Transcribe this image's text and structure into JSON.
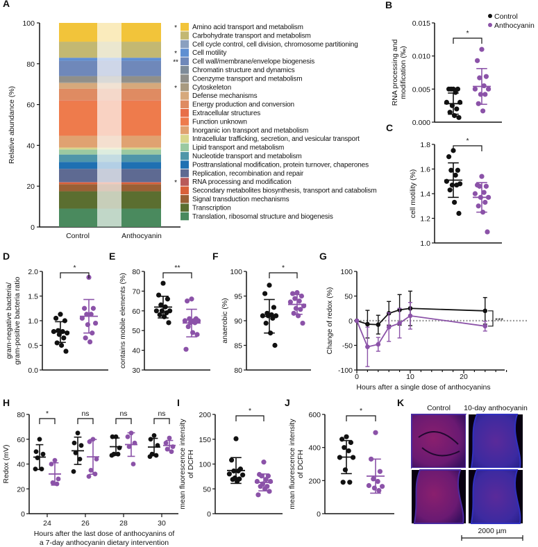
{
  "colors": {
    "control": "#111111",
    "anthocyanin": "#8b52a8",
    "reference_line": "#9a9a9a"
  },
  "legend": [
    {
      "label": "Control",
      "color": "#111111"
    },
    {
      "label": "Anthocyanin",
      "color": "#8b52a8"
    }
  ],
  "panel_letters": [
    "A",
    "B",
    "C",
    "D",
    "E",
    "F",
    "G",
    "H",
    "I",
    "J",
    "K"
  ],
  "chart_data": [
    {
      "id": "A",
      "type": "bar",
      "stacked": true,
      "categories": [
        "Control",
        "Anthocyanin"
      ],
      "ylabel": "Relative abundance (%)",
      "ylim": [
        0,
        100
      ],
      "ytick_labels": [
        "0",
        "20",
        "40",
        "60",
        "80",
        "100"
      ],
      "series": [
        {
          "name": "Amino acid transport and metabolism",
          "color": "#f2c43a",
          "values": [
            9.2,
            9.2
          ],
          "sig": "*"
        },
        {
          "name": "Carbohydrate transport and metabolism",
          "color": "#c3b872",
          "values": [
            7.8,
            7.8
          ],
          "sig": ""
        },
        {
          "name": "Cell cycle control, cell division, chromosome partitioning",
          "color": "#8aa0c0",
          "values": [
            0.2,
            0.2
          ],
          "sig": ""
        },
        {
          "name": "Cell motility",
          "color": "#5f8fd2",
          "values": [
            1.3,
            1.3
          ],
          "sig": "*"
        },
        {
          "name": "Cell wall/membrane/envelope biogenesis",
          "color": "#6f88ba",
          "values": [
            7.5,
            7.5
          ],
          "sig": "**"
        },
        {
          "name": "Chromatin structure and dynamics",
          "color": "#7f8c99",
          "values": [
            0.1,
            0.1
          ],
          "sig": ""
        },
        {
          "name": "Coenzyme transport and metabolism",
          "color": "#908f8a",
          "values": [
            3.1,
            3.1
          ],
          "sig": ""
        },
        {
          "name": "Cytoskeleton",
          "color": "#a89a80",
          "values": [
            0.3,
            0.3
          ],
          "sig": "*"
        },
        {
          "name": "Defense mechanisms",
          "color": "#d6a97c",
          "values": [
            2.7,
            2.7
          ],
          "sig": ""
        },
        {
          "name": "Energy production and conversion",
          "color": "#df8b62",
          "values": [
            5.8,
            5.8
          ],
          "sig": ""
        },
        {
          "name": "Extracellular structures",
          "color": "#e86e48",
          "values": [
            0.4,
            0.4
          ],
          "sig": ""
        },
        {
          "name": "Function unknown",
          "color": "#ee7b4c",
          "values": [
            16.9,
            16.9
          ],
          "sig": ""
        },
        {
          "name": "Inorganic ion transport and metabolism",
          "color": "#e0a271",
          "values": [
            5.8,
            5.8
          ],
          "sig": ""
        },
        {
          "name": "Intracellular trafficking, secretion, and vesicular transport",
          "color": "#d9d68c",
          "values": [
            0.9,
            0.9
          ],
          "sig": ""
        },
        {
          "name": "Lipid transport and metabolism",
          "color": "#9bc9a1",
          "values": [
            2.5,
            2.5
          ],
          "sig": ""
        },
        {
          "name": "Nucleotide transport and metabolism",
          "color": "#4f96a9",
          "values": [
            3.6,
            3.6
          ],
          "sig": ""
        },
        {
          "name": "Posttranslational modification, protein turnover, chaperones",
          "color": "#1f70b2",
          "values": [
            3.4,
            3.4
          ],
          "sig": ""
        },
        {
          "name": "Replication, recombination and repair",
          "color": "#5e6a92",
          "values": [
            6.5,
            6.5
          ],
          "sig": ""
        },
        {
          "name": "RNA processing and modification",
          "color": "#b95a5a",
          "values": [
            0.2,
            0.2
          ],
          "sig": "*"
        },
        {
          "name": "Secondary metabolites biosynthesis, transport and catabolism",
          "color": "#d9603a",
          "values": [
            0.8,
            0.8
          ],
          "sig": ""
        },
        {
          "name": "Signal transduction mechanisms",
          "color": "#9a6035",
          "values": [
            3.5,
            3.5
          ],
          "sig": ""
        },
        {
          "name": "Transcription",
          "color": "#5b6e30",
          "values": [
            8.5,
            8.5
          ],
          "sig": ""
        },
        {
          "name": "Translation, ribosomal structure and biogenesis",
          "color": "#4a8a5e",
          "values": [
            9.0,
            9.0
          ],
          "sig": ""
        }
      ]
    },
    {
      "id": "B",
      "type": "scatter",
      "ylabel": [
        "RNA processing and",
        "modification (‰)"
      ],
      "ylim": [
        0,
        0.015
      ],
      "ytick_values": [
        0,
        0.005,
        0.01,
        0.015
      ],
      "ytick_labels": [
        "0.000",
        "0.005",
        "0.010",
        "0.015"
      ],
      "sig": "*",
      "groups": [
        {
          "name": "Control",
          "values": [
            0.005,
            0.005,
            0.005,
            0.005,
            0.0045,
            0.003,
            0.003,
            0.0025,
            0.002,
            0.0015,
            0.001,
            0.0007
          ],
          "mean": 0.0028,
          "sd": 0.0016
        },
        {
          "name": "Anthocyanin",
          "values": [
            0.011,
            0.0093,
            0.0069,
            0.0067,
            0.0055,
            0.005,
            0.005,
            0.0042,
            0.0042,
            0.0028,
            0.0017
          ],
          "mean": 0.0054,
          "sd": 0.0027
        }
      ]
    },
    {
      "id": "C",
      "type": "scatter",
      "ylabel": [
        "cell motility (%)"
      ],
      "ylim": [
        1.0,
        1.8
      ],
      "ytick_values": [
        1.0,
        1.2,
        1.4,
        1.6,
        1.8
      ],
      "ytick_labels": [
        "1.0",
        "1.2",
        "1.4",
        "1.6",
        "1.8"
      ],
      "sig": "*",
      "groups": [
        {
          "name": "Control",
          "values": [
            1.75,
            1.7,
            1.59,
            1.59,
            1.55,
            1.5,
            1.48,
            1.47,
            1.47,
            1.43,
            1.33,
            1.24
          ],
          "mean": 1.51,
          "sd": 0.14
        },
        {
          "name": "Anthocyanin",
          "values": [
            1.54,
            1.47,
            1.46,
            1.46,
            1.41,
            1.4,
            1.37,
            1.37,
            1.33,
            1.3,
            1.25,
            1.09
          ],
          "mean": 1.37,
          "sd": 0.12
        }
      ]
    },
    {
      "id": "D",
      "type": "scatter",
      "ylabel": [
        "gram-negative bacteria/",
        "gram-positive bacteria ratio"
      ],
      "ylim": [
        0,
        2.0
      ],
      "ytick_values": [
        0,
        0.5,
        1.0,
        1.5,
        2.0
      ],
      "ytick_labels": [
        "0.0",
        "0.5",
        "1.0",
        "1.5",
        "2.0"
      ],
      "sig": "*",
      "groups": [
        {
          "name": "Control",
          "values": [
            1.13,
            1.05,
            1.0,
            0.8,
            0.78,
            0.78,
            0.75,
            0.72,
            0.65,
            0.55,
            0.5,
            0.38
          ],
          "mean": 0.77,
          "sd": 0.21
        },
        {
          "name": "Anthocyanin",
          "values": [
            1.88,
            1.25,
            1.25,
            1.13,
            1.13,
            1.05,
            0.95,
            0.92,
            0.75,
            0.65,
            0.57
          ],
          "mean": 1.09,
          "sd": 0.34
        }
      ]
    },
    {
      "id": "E",
      "type": "scatter",
      "ylabel": [
        "contains mobile elements (%)"
      ],
      "ylim": [
        30,
        80
      ],
      "ytick_values": [
        30,
        40,
        50,
        60,
        70,
        80
      ],
      "ytick_labels": [
        "30",
        "40",
        "50",
        "60",
        "70",
        "80"
      ],
      "sig": "**",
      "groups": [
        {
          "name": "Control",
          "values": [
            74,
            68,
            66,
            63,
            62,
            60,
            60,
            60,
            59,
            58,
            57,
            54
          ],
          "mean": 61.9,
          "sd": 5.5
        },
        {
          "name": "Anthocyanin",
          "values": [
            66,
            65,
            56,
            56,
            55,
            55,
            55,
            54,
            54,
            52,
            49,
            48,
            40.5
          ],
          "mean": 53.8,
          "sd": 7.0
        }
      ]
    },
    {
      "id": "F",
      "type": "scatter",
      "ylabel": [
        "anaerobic (%)"
      ],
      "ylim": [
        80,
        100
      ],
      "ytick_values": [
        80,
        85,
        90,
        95,
        100
      ],
      "ytick_labels": [
        "80",
        "85",
        "90",
        "95",
        "100"
      ],
      "sig": "*",
      "groups": [
        {
          "name": "Control",
          "values": [
            97.2,
            95.5,
            92.7,
            91.5,
            91.2,
            91,
            91,
            91,
            90.5,
            89.5,
            87.5,
            85
          ],
          "mean": 90.9,
          "sd": 3.4
        },
        {
          "name": "Anthocyanin",
          "values": [
            95.7,
            95.5,
            95,
            94.5,
            94,
            93.8,
            93,
            92.5,
            92.3,
            91.5,
            91,
            89.5
          ],
          "mean": 93.3,
          "sd": 2.0
        }
      ]
    },
    {
      "id": "G",
      "type": "line",
      "xlabel": "Hours after a single dose of anthocyanins",
      "ylabel": [
        "Change of redox (%)"
      ],
      "xlim": [
        0,
        28
      ],
      "ylim": [
        -100,
        100
      ],
      "xtick_values": [
        0,
        10,
        20
      ],
      "xtick_labels": [
        "0",
        "10",
        "20"
      ],
      "ytick_values": [
        -100,
        -50,
        0,
        50,
        100
      ],
      "ytick_labels": [
        "-100",
        "-50",
        "0",
        "50",
        "100"
      ],
      "sig": "***",
      "x": [
        0,
        2,
        4,
        6,
        8,
        10,
        24
      ],
      "series": [
        {
          "name": "Control",
          "values": [
            0,
            -7,
            -8,
            15,
            22,
            25,
            20
          ],
          "sd": [
            0,
            28,
            19,
            24,
            31,
            35,
            27
          ]
        },
        {
          "name": "Anthocyanin",
          "values": [
            0,
            -53,
            -48,
            -13,
            -5,
            10,
            -11
          ],
          "sd": [
            0,
            40,
            14,
            29,
            30,
            27,
            10
          ]
        }
      ]
    },
    {
      "id": "H",
      "type": "scatter",
      "xlabel": [
        "Hours after the last dose of anthocyanins of",
        "a 7-day anthocyanin dietary intervention"
      ],
      "ylabel": [
        "Redox (mV)"
      ],
      "ylim": [
        0,
        80
      ],
      "ytick_values": [
        0,
        20,
        40,
        60,
        80
      ],
      "ytick_labels": [
        "0",
        "20",
        "40",
        "60",
        "80"
      ],
      "categories": [
        "24",
        "26",
        "28",
        "30"
      ],
      "sigs": [
        "*",
        "ns",
        "ns",
        "ns"
      ],
      "clusters": [
        [
          {
            "name": "Control",
            "values": [
              60,
              50,
              48,
              45,
              36,
              36
            ],
            "mean": 45.6,
            "sd": 10
          },
          {
            "name": "Anthocyanin",
            "values": [
              43,
              40,
              28,
              25,
              24
            ],
            "mean": 32,
            "sd": 9
          }
        ],
        [
          {
            "name": "Control",
            "values": [
              65,
              57,
              55,
              49,
              44,
              34
            ],
            "mean": 50.7,
            "sd": 11
          },
          {
            "name": "Anthocyanin",
            "values": [
              60,
              58,
              44,
              35,
              32,
              30
            ],
            "mean": 45.8,
            "sd": 14
          }
        ],
        [
          {
            "name": "Control",
            "values": [
              62,
              62,
              53,
              48,
              48,
              47
            ],
            "mean": 54,
            "sd": 7
          },
          {
            "name": "Anthocyanin",
            "values": [
              65,
              62,
              57,
              54,
              40
            ],
            "mean": 55.7,
            "sd": 9.5
          }
        ],
        [
          {
            "name": "Control",
            "values": [
              63,
              60,
              55,
              48,
              47,
              46
            ],
            "mean": 53.7,
            "sd": 7
          },
          {
            "name": "Anthocyanin",
            "values": [
              61,
              57,
              54,
              52,
              50
            ],
            "mean": 55,
            "sd": 4
          }
        ]
      ]
    },
    {
      "id": "I",
      "type": "scatter",
      "ylabel": [
        "mean fluorescence intensity",
        "of DCFH"
      ],
      "ylim": [
        0,
        200
      ],
      "ytick_values": [
        0,
        50,
        100,
        150,
        200
      ],
      "ytick_labels": [
        "0",
        "50",
        "100",
        "150",
        "200"
      ],
      "sig": "*",
      "groups": [
        {
          "name": "Control",
          "values": [
            151,
            108,
            90,
            86,
            86,
            80,
            78,
            72,
            70,
            69,
            65
          ],
          "mean": 87,
          "sd": 26
        },
        {
          "name": "Anthocyanin",
          "values": [
            104,
            79,
            76,
            76,
            69,
            65,
            65,
            60,
            55,
            55,
            50,
            45,
            38
          ],
          "mean": 63,
          "sd": 17
        }
      ]
    },
    {
      "id": "J",
      "type": "scatter",
      "ylabel": [
        "mean fluorescence intensity",
        "of DCFH"
      ],
      "ylim": [
        0,
        600
      ],
      "ytick_values": [
        0,
        200,
        400,
        600
      ],
      "ytick_labels": [
        "0",
        "200",
        "400",
        "600"
      ],
      "sig": "*",
      "groups": [
        {
          "name": "Control",
          "values": [
            465,
            450,
            430,
            400,
            380,
            340,
            340,
            265,
            190,
            190
          ],
          "mean": 342,
          "sd": 100
        },
        {
          "name": "Anthocyanin",
          "values": [
            490,
            330,
            255,
            210,
            195,
            170,
            165,
            155,
            140
          ],
          "mean": 227,
          "sd": 103
        }
      ]
    }
  ],
  "panel_K": {
    "column_labels": [
      "Control",
      "10-day anthocyanin"
    ],
    "scale_bar_label": "2000 µm"
  }
}
